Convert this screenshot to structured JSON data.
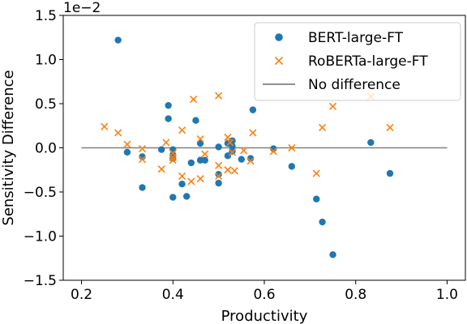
{
  "chart_data": {
    "type": "scatter",
    "title": "",
    "xlabel": "Productivity",
    "ylabel": "Sensitivity Difference",
    "y_offset_label": "1e−2",
    "xlim": [
      0.16,
      1.04
    ],
    "ylim": [
      -1.5,
      1.5
    ],
    "x_ticks": [
      0.2,
      0.4,
      0.6,
      0.8,
      1.0
    ],
    "x_tick_labels": [
      "0.2",
      "0.4",
      "0.6",
      "0.8",
      "1.0"
    ],
    "y_ticks": [
      -1.5,
      -1.0,
      -0.5,
      0.0,
      0.5,
      1.0,
      1.5
    ],
    "y_tick_labels": [
      "−1.5",
      "−1.0",
      "−0.5",
      "0.0",
      "0.5",
      "1.0",
      "1.5"
    ],
    "grid": false,
    "legend_position": "top-right",
    "reference_line": {
      "name": "No difference",
      "x": [
        0.2,
        1.0
      ],
      "y": [
        0.0,
        0.0
      ],
      "color": "#808080"
    },
    "series": [
      {
        "name": "BERT-large-FT",
        "marker": "circle",
        "color": "#1f77b4",
        "x": [
          0.28,
          0.3,
          0.333,
          0.333,
          0.375,
          0.39,
          0.39,
          0.4,
          0.4,
          0.4,
          0.4,
          0.42,
          0.43,
          0.44,
          0.45,
          0.46,
          0.46,
          0.47,
          0.5,
          0.5,
          0.5,
          0.52,
          0.52,
          0.53,
          0.53,
          0.53,
          0.55,
          0.57,
          0.575,
          0.62,
          0.66,
          0.714,
          0.727,
          0.75,
          0.833,
          0.875
        ],
        "y": [
          1.22,
          -0.05,
          -0.1,
          -0.45,
          -0.02,
          0.48,
          0.33,
          -0.02,
          -0.08,
          -0.12,
          -0.56,
          -0.41,
          -0.55,
          -0.17,
          0.31,
          0.05,
          -0.14,
          -0.14,
          -0.3,
          -0.4,
          0.01,
          0.05,
          -0.09,
          0.02,
          0.08,
          -0.04,
          -0.13,
          -0.12,
          0.43,
          -0.01,
          -0.21,
          -0.58,
          -0.84,
          -1.21,
          0.06,
          -0.29
        ]
      },
      {
        "name": "RoBERTa-large-FT",
        "marker": "x",
        "color": "#ff7f0e",
        "x": [
          0.25,
          0.28,
          0.3,
          0.333,
          0.333,
          0.375,
          0.385,
          0.4,
          0.4,
          0.4,
          0.42,
          0.42,
          0.44,
          0.445,
          0.46,
          0.46,
          0.47,
          0.5,
          0.5,
          0.5,
          0.52,
          0.52,
          0.525,
          0.53,
          0.535,
          0.555,
          0.57,
          0.575,
          0.62,
          0.66,
          0.714,
          0.727,
          0.75,
          0.833,
          0.875
        ],
        "y": [
          0.24,
          0.17,
          0.04,
          -0.01,
          -0.13,
          -0.24,
          0.06,
          -0.11,
          -0.14,
          -0.06,
          0.2,
          -0.32,
          -0.38,
          0.55,
          0.1,
          -0.35,
          -0.07,
          0.59,
          -0.2,
          -0.32,
          0.12,
          -0.25,
          0.06,
          -0.05,
          -0.26,
          -0.03,
          -0.15,
          0.17,
          -0.04,
          0.0,
          -0.29,
          0.23,
          0.47,
          0.58,
          0.23
        ]
      }
    ]
  }
}
